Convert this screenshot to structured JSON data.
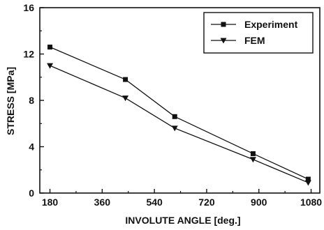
{
  "chart_data": {
    "type": "line",
    "title": "",
    "xlabel": "INVOLUTE ANGLE [deg.]",
    "ylabel": "STRESS [MPa]",
    "xlim": [
      145,
      1110
    ],
    "ylim": [
      0,
      16
    ],
    "xticks": [
      180,
      360,
      540,
      720,
      900,
      1080
    ],
    "yticks": [
      0,
      4,
      8,
      12,
      16
    ],
    "grid": false,
    "legend_position": "top-right",
    "series": [
      {
        "name": "Experiment",
        "marker": "square",
        "color": "#111111",
        "x": [
          180,
          440,
          610,
          880,
          1070
        ],
        "y": [
          12.6,
          9.8,
          6.6,
          3.4,
          1.2
        ]
      },
      {
        "name": "FEM",
        "marker": "triangle-down",
        "color": "#111111",
        "x": [
          180,
          440,
          610,
          880,
          1070
        ],
        "y": [
          11.0,
          8.2,
          5.6,
          2.9,
          0.9
        ]
      }
    ]
  }
}
